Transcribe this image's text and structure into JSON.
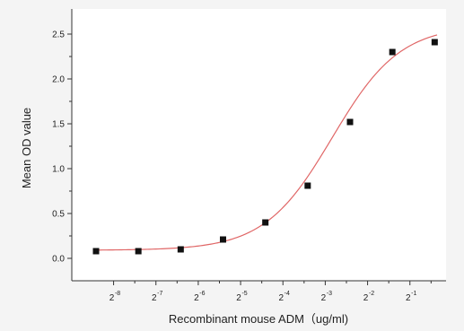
{
  "chart_data": {
    "type": "scatter",
    "title": "",
    "xlabel": "Recombinant mouse ADM（ug/ml)",
    "ylabel": "Mean OD value",
    "x_scale": "log2",
    "xlim": [
      0.00293,
      0.78
    ],
    "ylim": [
      -0.25,
      2.78
    ],
    "x_ticks": [
      {
        "value": 0.00390625,
        "base": "2",
        "exp": "-8"
      },
      {
        "value": 0.0078125,
        "base": "2",
        "exp": "-7"
      },
      {
        "value": 0.015625,
        "base": "2",
        "exp": "-6"
      },
      {
        "value": 0.03125,
        "base": "2",
        "exp": "-5"
      },
      {
        "value": 0.0625,
        "base": "2",
        "exp": "-4"
      },
      {
        "value": 0.125,
        "base": "2",
        "exp": "-3"
      },
      {
        "value": 0.25,
        "base": "2",
        "exp": "-2"
      },
      {
        "value": 0.5,
        "base": "2",
        "exp": "-1"
      }
    ],
    "y_ticks": [
      "0.0",
      "0.5",
      "1.0",
      "1.5",
      "2.0",
      "2.5"
    ],
    "series": [
      {
        "kind": "points",
        "color": "#111111",
        "x": [
          0.00293,
          0.00586,
          0.01172,
          0.02344,
          0.04688,
          0.09375,
          0.1875,
          0.375,
          0.75
        ],
        "y": [
          0.08,
          0.08,
          0.1,
          0.21,
          0.4,
          0.81,
          1.52,
          2.3,
          2.41
        ]
      },
      {
        "kind": "fit-curve",
        "color": "#e06666",
        "model": "4PL",
        "params": {
          "bottom": 0.09,
          "top": 2.6,
          "ec50": 0.14,
          "hill": 1.8
        }
      }
    ],
    "grid": false,
    "legend": "none"
  }
}
